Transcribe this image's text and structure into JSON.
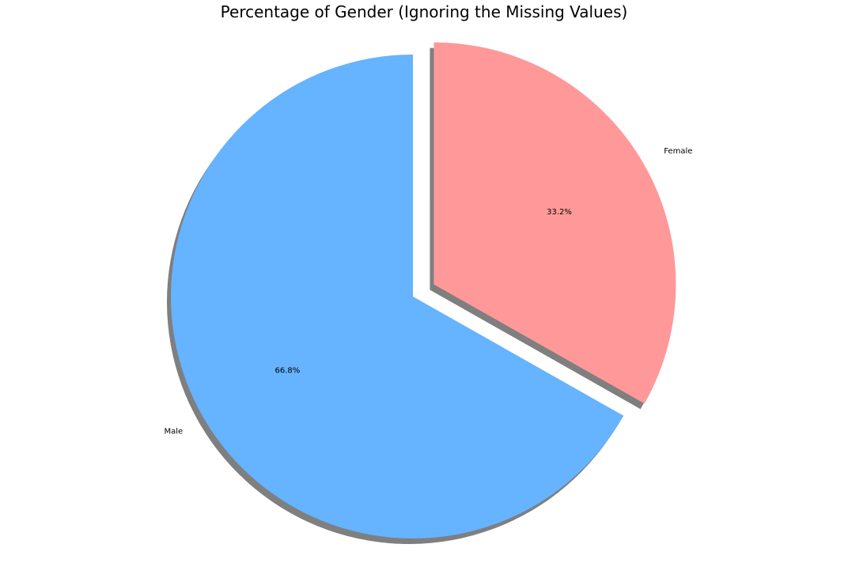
{
  "chart_data": {
    "type": "pie",
    "title": "Percentage of Gender (Ignoring the Missing Values)",
    "categories": [
      "Male",
      "Female"
    ],
    "values": [
      66.8,
      33.2
    ],
    "percent_labels": [
      "66.8%",
      "33.2%"
    ],
    "colors": [
      "#66b3ff",
      "#ff9999"
    ],
    "shadow_color": "#7f7f7f",
    "explode": [
      0,
      0.1
    ],
    "start_angle_deg": 90,
    "direction": "counterclockwise",
    "shadow": true,
    "legend": "none"
  }
}
